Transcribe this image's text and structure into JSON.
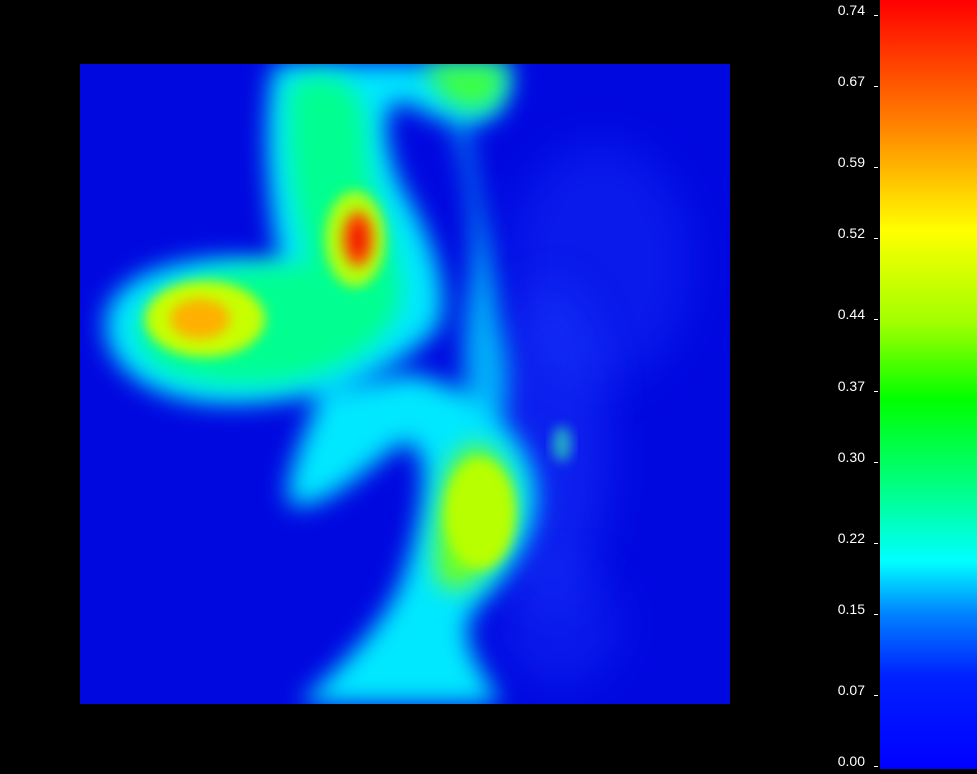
{
  "chart_data": {
    "type": "heatmap",
    "title": "",
    "xlabel": "",
    "ylabel": "",
    "colormap": "rainbow (blue-cyan-green-yellow-red)",
    "zlim": [
      0.0,
      0.74
    ],
    "colorbar": {
      "placement": "right",
      "tick_labels": [
        "0.74",
        "0.67",
        "0.59",
        "0.52",
        "0.44",
        "0.37",
        "0.30",
        "0.22",
        "0.15",
        "0.07",
        "0.00"
      ],
      "tick_values": [
        0.74,
        0.67,
        0.59,
        0.52,
        0.44,
        0.37,
        0.3,
        0.22,
        0.15,
        0.07,
        0.0
      ]
    },
    "notable_features": [
      {
        "label": "peak-red",
        "value": 0.72
      },
      {
        "label": "peak-orange",
        "value": 0.6
      },
      {
        "label": "lower-yellow-green",
        "value": 0.45
      },
      {
        "label": "background",
        "value": 0.03
      }
    ]
  },
  "colors": {
    "background": "#000000",
    "low": "#0000ff",
    "mid_low": "#00ffff",
    "mid": "#00ff00",
    "mid_high": "#ffff00",
    "high": "#ff0000"
  }
}
